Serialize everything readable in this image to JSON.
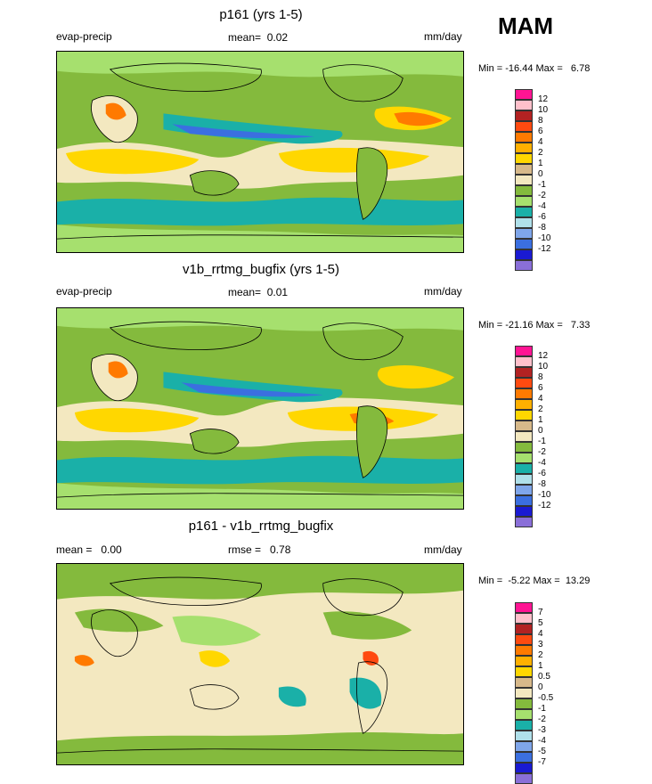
{
  "season": "MAM",
  "colors": {
    "palette_main": [
      "#8a6fd8",
      "#1a1ad2",
      "#3b6fe0",
      "#7fa6ea",
      "#b0e0ea",
      "#1ab0a8",
      "#a6e06e",
      "#84ba3d",
      "#f3e8c0",
      "#d7b98a",
      "#ffd700",
      "#ffb000",
      "#ff7a00",
      "#ff4a10",
      "#b22222",
      "#ffc0cb",
      "#ff1493"
    ],
    "palette_diff": [
      "#8a6fd8",
      "#1a1ad2",
      "#3b6fe0",
      "#7fa6ea",
      "#b0e0ea",
      "#1ab0a8",
      "#a6e06e",
      "#84ba3d",
      "#f3e8c0",
      "#d7b98a",
      "#ffd700",
      "#ffb000",
      "#ff7a00",
      "#ff4a10",
      "#b22222",
      "#ffc0cb",
      "#ff1493"
    ]
  },
  "panels": [
    {
      "title": "p161 (yrs 1-5)",
      "left_label": "evap-precip",
      "center_label": "mean=  0.02",
      "units": "mm/day",
      "minmax": "Min = -16.44 Max =   6.78",
      "levels": [
        "12",
        "10",
        "8",
        "6",
        "4",
        "2",
        "1",
        "0",
        "-1",
        "-2",
        "-4",
        "-6",
        "-8",
        "-10",
        "-12"
      ]
    },
    {
      "title": "v1b_rrtmg_bugfix (yrs 1-5)",
      "left_label": "evap-precip",
      "center_label": "mean=  0.01",
      "units": "mm/day",
      "minmax": "Min = -21.16 Max =   7.33",
      "levels": [
        "12",
        "10",
        "8",
        "6",
        "4",
        "2",
        "1",
        "0",
        "-1",
        "-2",
        "-4",
        "-6",
        "-8",
        "-10",
        "-12"
      ]
    },
    {
      "title": "p161 - v1b_rrtmg_bugfix",
      "left_label": "mean =   0.00",
      "center_label": "rmse =   0.78",
      "units": "mm/day",
      "minmax": "Min =  -5.22 Max =  13.29",
      "levels": [
        "7",
        "5",
        "4",
        "3",
        "2",
        "1",
        "0.5",
        "0",
        "-0.5",
        "-1",
        "-2",
        "-3",
        "-4",
        "-5",
        "-7"
      ]
    }
  ]
}
